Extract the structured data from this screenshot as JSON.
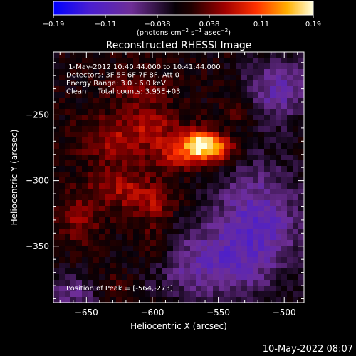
{
  "chart_data": {
    "type": "heatmap",
    "title": "Reconstructed RHESSI Image",
    "xlabel": "Heliocentric X (arcsec)",
    "ylabel": "Heliocentric Y (arcsec)",
    "xlim": [
      -675,
      -485
    ],
    "ylim": [
      -393,
      -202
    ],
    "x_ticks": [
      -650,
      -600,
      -550,
      -500
    ],
    "y_ticks": [
      -250,
      -300,
      -350
    ],
    "colorbar": {
      "min": -0.19,
      "max": 0.19,
      "ticks": [
        "-0.19",
        "-0.11",
        "-0.038",
        "0.038",
        "0.11",
        "0.19"
      ],
      "unit_label": "(photons cm⁻² s⁻¹ asec⁻²)",
      "colors": [
        "#0000ff",
        "#5522cc",
        "#6e2e96",
        "#000000",
        "#8a0000",
        "#ff3000",
        "#ffb000",
        "#ffffe0"
      ]
    },
    "annotations": [
      " 1-May-2012 10:40:44.000 to 10:41:44.000",
      "Detectors: 3F 5F 6F 7F 8F, Att 0",
      "Energy Range: 3.0 - 6.0 keV",
      "Clean     Total counts: 3.95E+03"
    ],
    "peak_label": "Position of Peak = [-564,-273]",
    "peak": {
      "x": -564,
      "y": -273,
      "value": 0.19
    },
    "sources": [
      {
        "x": -564,
        "y": -273,
        "value": 0.19,
        "sx": 9,
        "sy": 8
      },
      {
        "x": -548,
        "y": -276,
        "value": 0.1,
        "sx": 8,
        "sy": 7
      },
      {
        "x": -585,
        "y": -280,
        "value": 0.07,
        "sx": 12,
        "sy": 9
      },
      {
        "x": -598,
        "y": -258,
        "value": 0.06,
        "sx": 14,
        "sy": 10
      },
      {
        "x": -630,
        "y": -268,
        "value": 0.06,
        "sx": 16,
        "sy": 12
      },
      {
        "x": -625,
        "y": -305,
        "value": 0.06,
        "sx": 18,
        "sy": 12
      },
      {
        "x": -598,
        "y": -318,
        "value": 0.05,
        "sx": 12,
        "sy": 10
      },
      {
        "x": -655,
        "y": -330,
        "value": 0.05,
        "sx": 10,
        "sy": 12
      },
      {
        "x": -600,
        "y": -350,
        "value": 0.04,
        "sx": 10,
        "sy": 12
      },
      {
        "x": -630,
        "y": -380,
        "value": 0.03,
        "sx": 10,
        "sy": 7
      },
      {
        "x": -535,
        "y": -245,
        "value": 0.035,
        "sx": 8,
        "sy": 10
      },
      {
        "x": -612,
        "y": -230,
        "value": 0.04,
        "sx": 15,
        "sy": 10
      },
      {
        "x": -520,
        "y": -330,
        "value": -0.1,
        "sx": 25,
        "sy": 30
      },
      {
        "x": -505,
        "y": -230,
        "value": -0.09,
        "sx": 18,
        "sy": 18
      },
      {
        "x": -560,
        "y": -365,
        "value": -0.08,
        "sx": 30,
        "sy": 20
      },
      {
        "x": -660,
        "y": -385,
        "value": -0.07,
        "sx": 15,
        "sy": 10
      }
    ]
  },
  "footer": {
    "date": "10-May-2022 08:07"
  }
}
